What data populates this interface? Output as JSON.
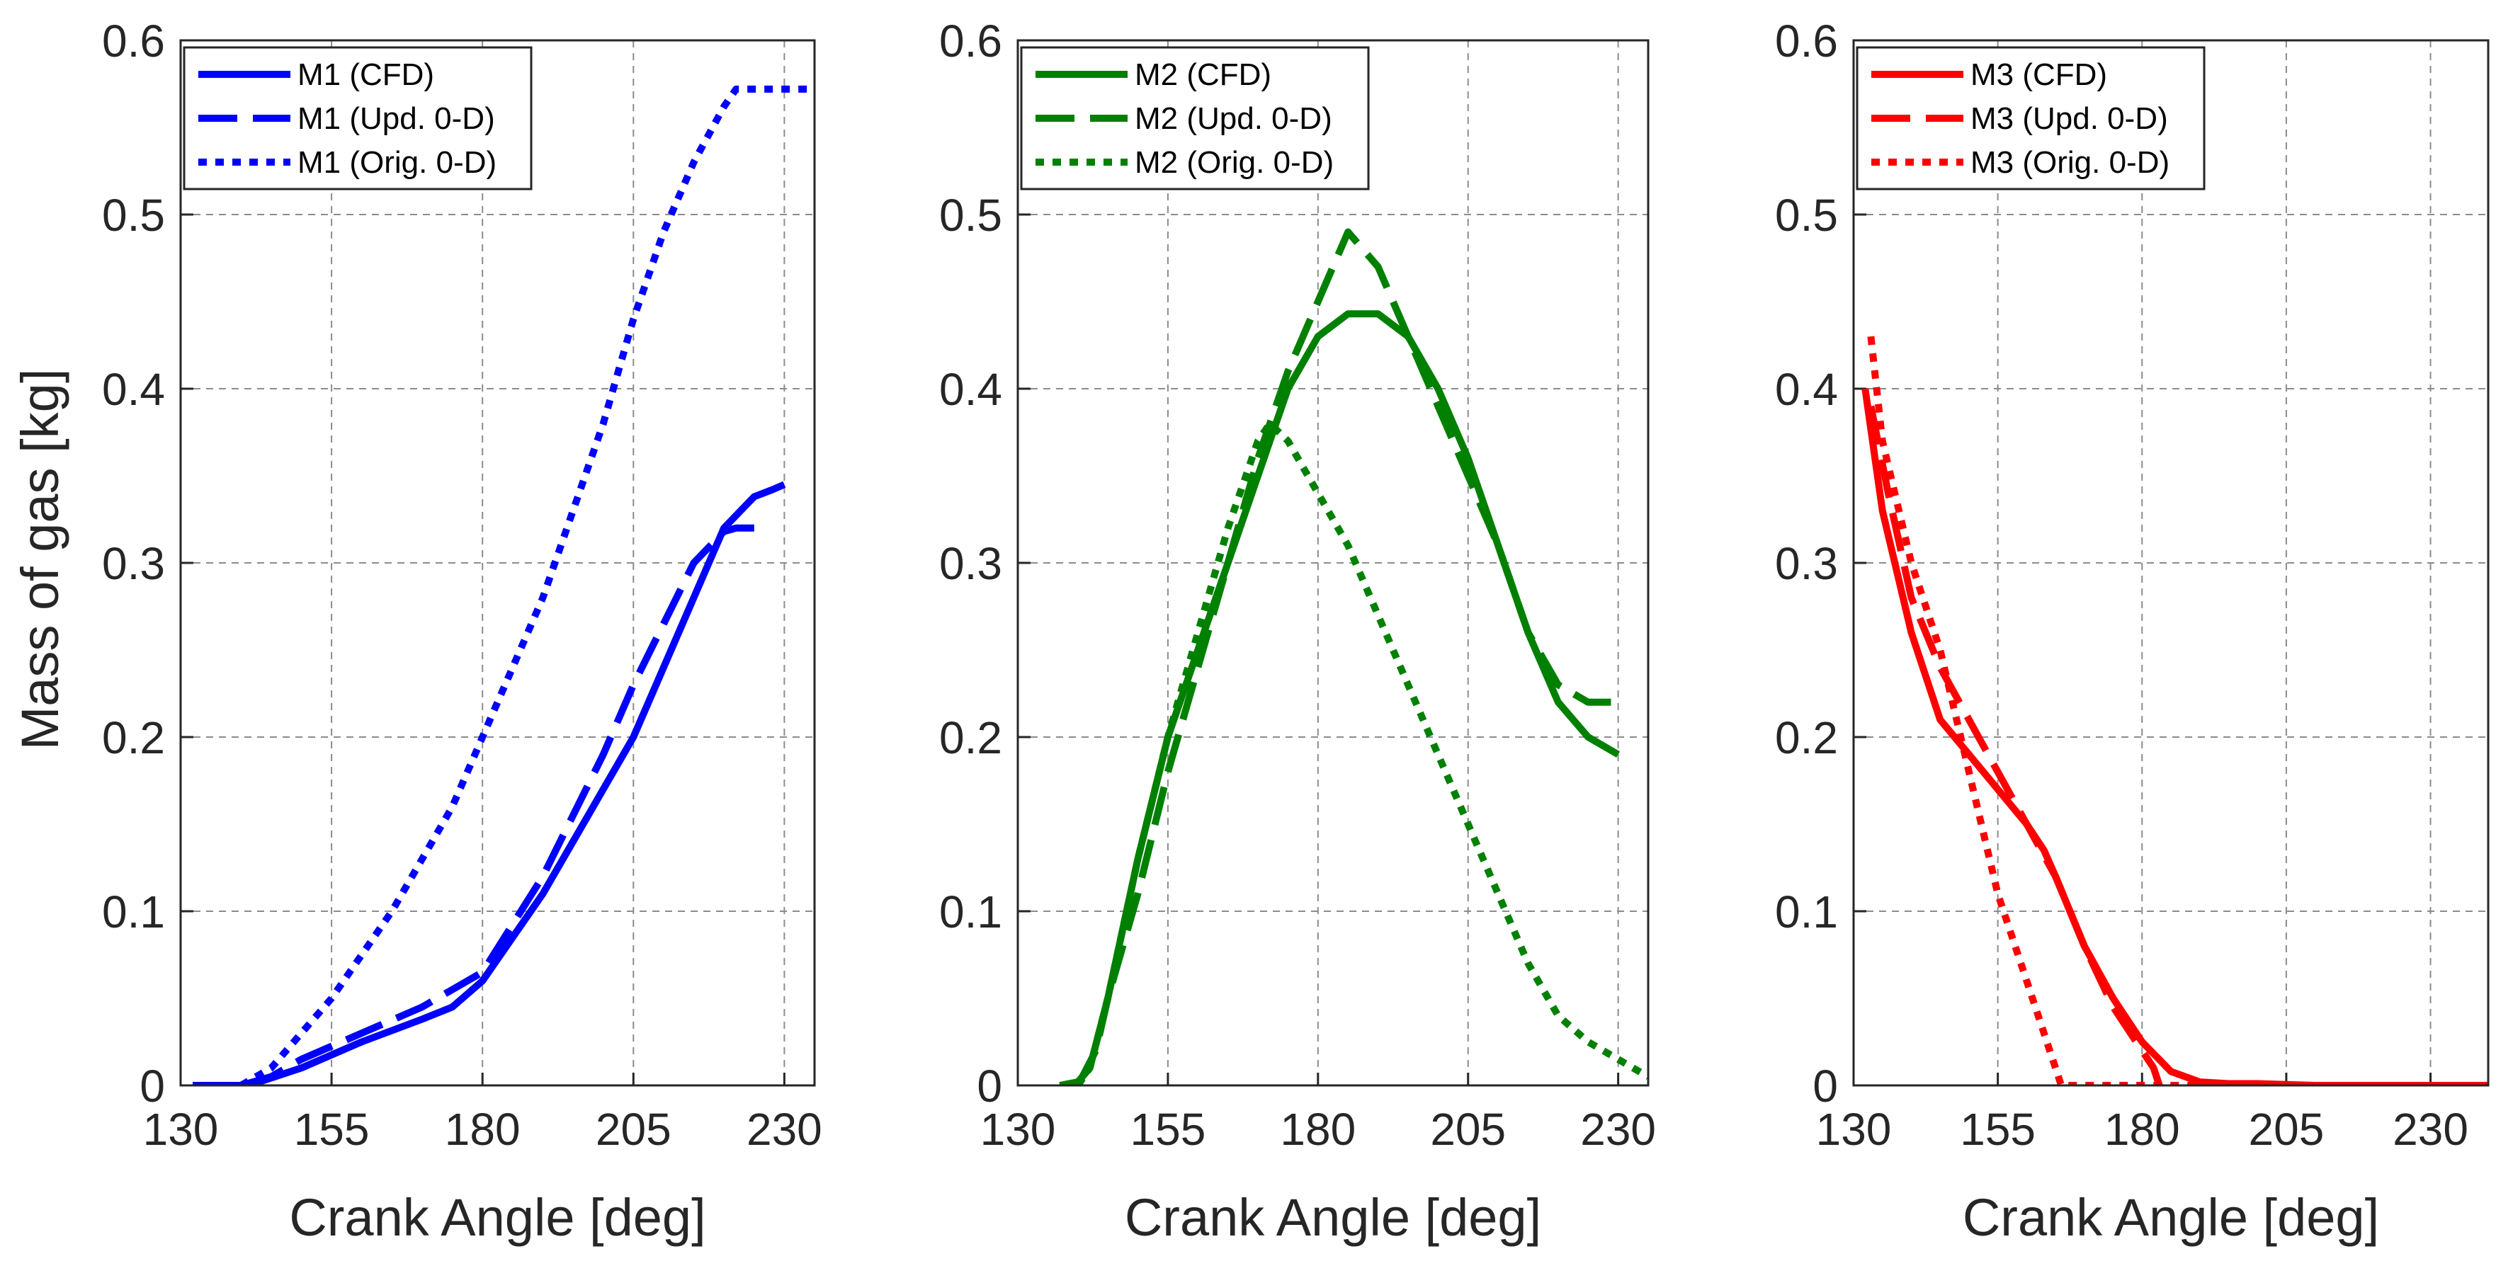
{
  "figure": {
    "ylabel": "Mass of gas [kg]",
    "xlabel": "Crank Angle [deg]"
  },
  "chart_data": [
    {
      "type": "line",
      "xlabel": "Crank Angle [deg]",
      "ylabel": "Mass of gas [kg]",
      "xlim": [
        130,
        235
      ],
      "ylim": [
        0,
        0.6
      ],
      "xticks": [
        "130",
        "155",
        "180",
        "205",
        "230"
      ],
      "yticks": [
        "0",
        "0.1",
        "0.2",
        "0.3",
        "0.4",
        "0.5",
        "0.6"
      ],
      "grid": true,
      "legend_position": "top-left",
      "color": "#0000ff",
      "series": [
        {
          "name": "M1 (CFD)",
          "style": "solid",
          "x": [
            132,
            140,
            143,
            150,
            160,
            170,
            175,
            180,
            190,
            200,
            205,
            210,
            215,
            220,
            225,
            228,
            230
          ],
          "y": [
            0,
            0,
            0.002,
            0.01,
            0.025,
            0.038,
            0.045,
            0.06,
            0.11,
            0.17,
            0.2,
            0.24,
            0.28,
            0.32,
            0.338,
            0.342,
            0.345
          ]
        },
        {
          "name": "M1 (Upd. 0-D)",
          "style": "dashed",
          "x": [
            132,
            140,
            145,
            150,
            160,
            170,
            180,
            190,
            200,
            205,
            210,
            215,
            220,
            222,
            225
          ],
          "y": [
            0,
            0,
            0.005,
            0.015,
            0.03,
            0.045,
            0.065,
            0.12,
            0.19,
            0.23,
            0.265,
            0.3,
            0.318,
            0.32,
            0.32
          ]
        },
        {
          "name": "M1 (Orig. 0-D)",
          "style": "dotted",
          "x": [
            140,
            145,
            150,
            155,
            160,
            165,
            170,
            175,
            180,
            190,
            200,
            205,
            210,
            215,
            220,
            222,
            225,
            235
          ],
          "y": [
            0,
            0.01,
            0.03,
            0.05,
            0.075,
            0.1,
            0.13,
            0.16,
            0.2,
            0.28,
            0.38,
            0.44,
            0.49,
            0.53,
            0.562,
            0.572,
            0.572,
            0.572
          ]
        }
      ]
    },
    {
      "type": "line",
      "xlabel": "Crank Angle [deg]",
      "ylabel": "",
      "xlim": [
        130,
        235
      ],
      "ylim": [
        0,
        0.6
      ],
      "xticks": [
        "130",
        "155",
        "180",
        "205",
        "230"
      ],
      "yticks": [
        "0",
        "0.1",
        "0.2",
        "0.3",
        "0.4",
        "0.5",
        "0.6"
      ],
      "grid": true,
      "legend_position": "top-left",
      "color": "#008000",
      "series": [
        {
          "name": "M2 (CFD)",
          "style": "solid",
          "x": [
            137,
            140,
            142,
            145,
            150,
            155,
            160,
            165,
            170,
            175,
            180,
            185,
            190,
            195,
            200,
            205,
            210,
            215,
            220,
            225,
            230
          ],
          "y": [
            0,
            0.002,
            0.01,
            0.05,
            0.13,
            0.2,
            0.25,
            0.3,
            0.35,
            0.4,
            0.43,
            0.443,
            0.443,
            0.43,
            0.4,
            0.36,
            0.31,
            0.26,
            0.22,
            0.2,
            0.19
          ]
        },
        {
          "name": "M2 (Upd. 0-D)",
          "style": "dashed",
          "x": [
            140,
            143,
            145,
            150,
            155,
            160,
            165,
            170,
            175,
            180,
            185,
            190,
            195,
            200,
            205,
            210,
            215,
            220,
            225,
            230
          ],
          "y": [
            0,
            0.02,
            0.05,
            0.11,
            0.18,
            0.24,
            0.3,
            0.36,
            0.41,
            0.45,
            0.49,
            0.47,
            0.43,
            0.39,
            0.35,
            0.31,
            0.26,
            0.23,
            0.22,
            0.22
          ]
        },
        {
          "name": "M2 (Orig. 0-D)",
          "style": "dotted",
          "x": [
            140,
            142,
            145,
            150,
            155,
            160,
            165,
            170,
            172,
            175,
            180,
            185,
            190,
            195,
            200,
            205,
            210,
            215,
            220,
            225,
            230,
            235
          ],
          "y": [
            0,
            0.01,
            0.05,
            0.13,
            0.2,
            0.26,
            0.32,
            0.37,
            0.38,
            0.37,
            0.34,
            0.31,
            0.27,
            0.23,
            0.19,
            0.15,
            0.11,
            0.07,
            0.04,
            0.025,
            0.015,
            0.005
          ]
        }
      ]
    },
    {
      "type": "line",
      "xlabel": "Crank Angle [deg]",
      "ylabel": "",
      "xlim": [
        130,
        240
      ],
      "ylim": [
        0,
        0.6
      ],
      "xticks": [
        "130",
        "155",
        "180",
        "205",
        "230"
      ],
      "yticks": [
        "0",
        "0.1",
        "0.2",
        "0.3",
        "0.4",
        "0.5",
        "0.6"
      ],
      "grid": true,
      "legend_position": "top-left",
      "color": "#ff0000",
      "series": [
        {
          "name": "M3 (CFD)",
          "style": "solid",
          "x": [
            132,
            135,
            140,
            145,
            150,
            155,
            160,
            163,
            165,
            170,
            175,
            180,
            185,
            190,
            195,
            200,
            210,
            220,
            230,
            240
          ],
          "y": [
            0.4,
            0.33,
            0.26,
            0.21,
            0.19,
            0.17,
            0.15,
            0.135,
            0.12,
            0.08,
            0.05,
            0.025,
            0.008,
            0.002,
            0.001,
            0.001,
            0.0,
            0.0,
            0.0,
            0.0
          ]
        },
        {
          "name": "M3 (Upd. 0-D)",
          "style": "dashed",
          "x": [
            133,
            136,
            140,
            145,
            150,
            155,
            160,
            165,
            170,
            175,
            180,
            182,
            183
          ],
          "y": [
            0.39,
            0.34,
            0.28,
            0.24,
            0.21,
            0.18,
            0.15,
            0.12,
            0.08,
            0.045,
            0.02,
            0.01,
            0
          ]
        },
        {
          "name": "M3 (Orig. 0-D)",
          "style": "dotted",
          "x": [
            133,
            135,
            140,
            145,
            150,
            155,
            160,
            165,
            166,
            180,
            200,
            240
          ],
          "y": [
            0.43,
            0.37,
            0.3,
            0.25,
            0.18,
            0.11,
            0.06,
            0.01,
            0,
            0,
            0,
            0
          ]
        }
      ]
    }
  ]
}
